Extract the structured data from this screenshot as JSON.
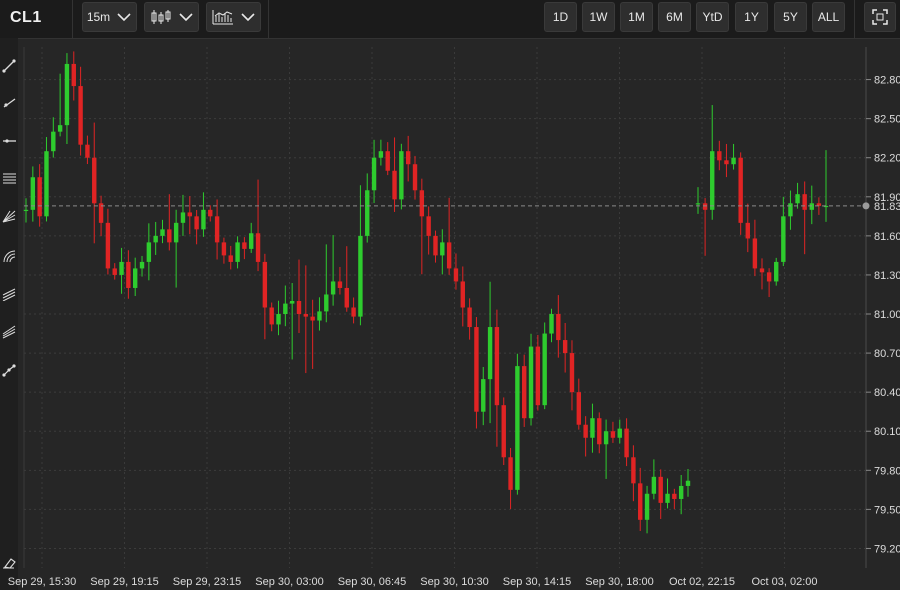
{
  "header": {
    "symbol": "CL1",
    "interval": "15m",
    "ranges": [
      "1D",
      "1W",
      "1M",
      "6M",
      "YtD",
      "1Y",
      "5Y",
      "ALL"
    ]
  },
  "icons": {
    "chart_type": "candlestick-icon",
    "indicators": "indicators-icon",
    "fullscreen": "fullscreen-icon",
    "tools": [
      "trendline-icon",
      "ray-icon",
      "horizontal-line-icon",
      "fib-retracement-icon",
      "gann-fan-icon",
      "arc-icon",
      "channel-icon",
      "pitchfork-icon",
      "path-icon",
      "eraser-icon"
    ]
  },
  "colors": {
    "up": "#2ecc2e",
    "down": "#e02424",
    "background": "#262626"
  },
  "chart_data": {
    "type": "candlestick",
    "ylim": [
      79.05,
      83.05
    ],
    "y_ticks": [
      "79.20",
      "79.50",
      "79.80",
      "80.10",
      "80.40",
      "80.70",
      "81.00",
      "81.30",
      "81.60",
      "81.90",
      "82.20",
      "82.50",
      "82.80"
    ],
    "x_ticks": [
      "Sep 29, 15:30",
      "Sep 29, 19:15",
      "Sep 29, 23:15",
      "Sep 30, 03:00",
      "Sep 30, 06:45",
      "Sep 30, 10:30",
      "Sep 30, 14:15",
      "Sep 30, 18:00",
      "Oct 02, 22:15",
      "Oct 03, 02:00"
    ],
    "last_price": "81.83",
    "last_value": 81.83,
    "grid": true,
    "segments": [
      {
        "values": [
          81.8,
          82.05,
          81.75,
          82.25,
          82.4,
          82.45,
          82.92,
          82.75,
          82.3,
          82.2,
          81.85,
          81.7,
          81.35,
          81.3,
          81.4,
          81.2,
          81.35,
          81.4,
          81.55,
          81.6,
          81.65,
          81.55,
          81.7,
          81.78,
          81.75,
          81.65,
          81.8,
          81.75,
          81.55,
          81.45,
          81.4,
          81.55,
          81.5,
          81.62,
          81.4,
          81.05,
          80.92,
          81.0,
          81.08,
          81.1,
          81.0,
          80.98,
          80.95,
          81.02,
          81.15,
          81.25,
          81.2,
          81.05,
          80.98,
          81.6,
          81.95,
          82.2,
          82.25,
          82.1,
          81.88,
          82.25,
          82.15,
          81.95,
          81.75,
          81.6,
          81.45,
          81.55,
          81.35,
          81.25,
          81.05,
          80.9,
          80.25,
          80.5,
          80.9,
          80.3,
          79.9,
          79.65,
          80.6,
          80.2,
          80.75,
          80.3,
          80.85,
          81.0,
          80.8,
          80.7,
          80.4,
          80.15,
          80.05,
          80.2,
          80.0,
          80.1,
          80.05,
          80.12,
          79.9,
          79.7,
          79.42,
          79.62,
          79.75,
          79.55,
          79.62,
          79.58,
          79.68,
          79.72
        ]
      },
      {
        "values": [
          81.85,
          81.8,
          82.25,
          82.18,
          82.15,
          82.2,
          81.7,
          81.58,
          81.35,
          81.32,
          81.25,
          81.4,
          81.75,
          81.85,
          81.92,
          81.8,
          81.85,
          81.83,
          81.83
        ]
      }
    ]
  }
}
